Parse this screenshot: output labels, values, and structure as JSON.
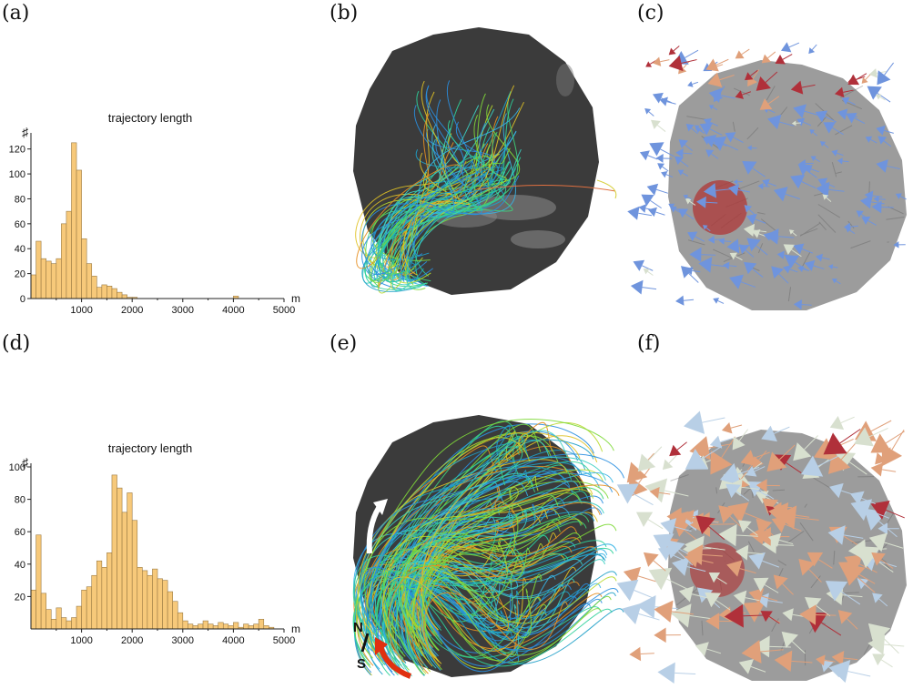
{
  "panels": {
    "a": "(a)",
    "b": "(b)",
    "c": "(c)",
    "d": "(d)",
    "e": "(e)",
    "f": "(f)"
  },
  "compass": {
    "north": "N",
    "south": "S"
  },
  "colors": {
    "bar_fill": "#f7c97a",
    "bar_stroke": "#9a7a44",
    "body_dark": "#3c3c3c",
    "body_gray": "#9a9a9a",
    "region_red": "#b03030",
    "arrow_blue": "#6f94dd",
    "arrow_orange": "#e0a07a",
    "arrow_red": "#b0303a",
    "arrow_pale": "#d8e0cf",
    "rotation_arrow": "#e03010"
  },
  "chart_data": [
    {
      "type": "bar",
      "title": "trajectory length",
      "ylabel": "♯",
      "xlabel": "m",
      "xlim": [
        0,
        5000
      ],
      "ylim": [
        0,
        130
      ],
      "bin_width": 100,
      "xticks": [
        1000,
        2000,
        3000,
        4000,
        5000
      ],
      "yticks": [
        0,
        20,
        40,
        60,
        80,
        100,
        120
      ],
      "bins_start": [
        0,
        100,
        200,
        300,
        400,
        500,
        600,
        700,
        800,
        900,
        1000,
        1100,
        1200,
        1300,
        1400,
        1500,
        1600,
        1700,
        1800,
        1900,
        2000,
        4000
      ],
      "values": [
        19,
        46,
        32,
        30,
        28,
        32,
        60,
        70,
        125,
        103,
        48,
        28,
        18,
        9,
        11,
        10,
        8,
        5,
        3,
        1,
        1,
        2
      ]
    },
    {
      "type": "bar",
      "title": "trajectory length",
      "ylabel": "♯",
      "xlabel": "m",
      "xlim": [
        0,
        5000
      ],
      "ylim": [
        0,
        100
      ],
      "bin_width": 100,
      "xticks": [
        1000,
        2000,
        3000,
        4000,
        5000
      ],
      "yticks": [
        20,
        40,
        60,
        80,
        100
      ],
      "bins_start": [
        0,
        100,
        200,
        300,
        400,
        500,
        600,
        700,
        800,
        900,
        1000,
        1100,
        1200,
        1300,
        1400,
        1500,
        1600,
        1700,
        1800,
        1900,
        2000,
        2100,
        2200,
        2300,
        2400,
        2500,
        2600,
        2700,
        2800,
        2900,
        3000,
        3100,
        3200,
        3300,
        3400,
        3500,
        3600,
        3700,
        3800,
        3900,
        4000,
        4100,
        4200,
        4300,
        4400,
        4500,
        4600,
        4700
      ],
      "values": [
        24,
        58,
        22,
        12,
        6,
        13,
        7,
        5,
        7,
        14,
        24,
        26,
        33,
        42,
        38,
        47,
        95,
        87,
        72,
        84,
        67,
        38,
        36,
        33,
        37,
        31,
        30,
        23,
        17,
        10,
        5,
        3,
        2,
        3,
        5,
        3,
        2,
        4,
        3,
        2,
        4,
        1,
        3,
        2,
        3,
        6,
        2,
        1
      ]
    }
  ]
}
